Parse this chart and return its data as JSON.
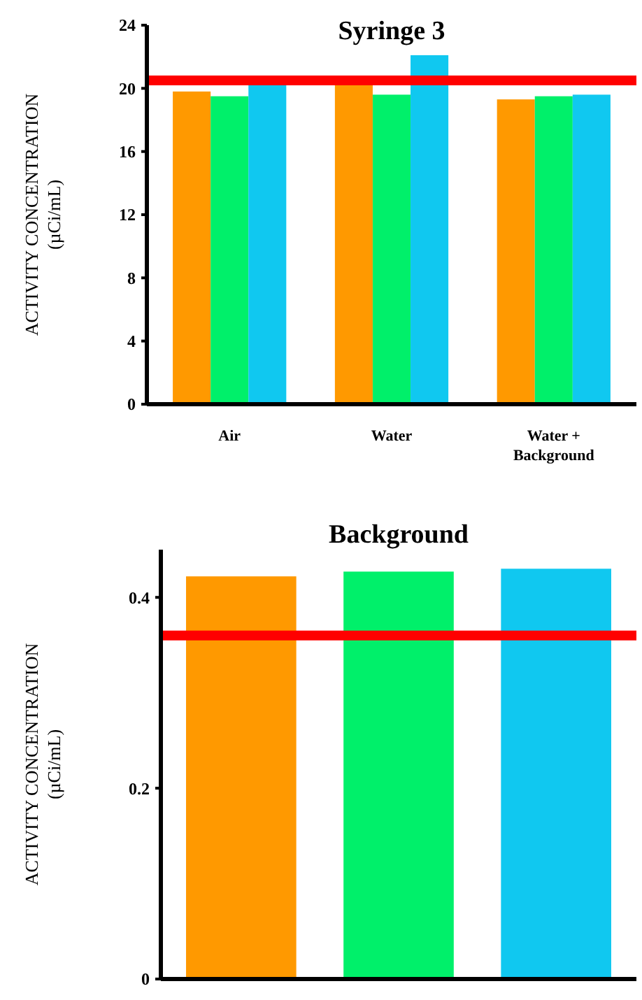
{
  "chart_data": [
    {
      "type": "bar",
      "title": "Syringe 3",
      "ylabel": "ACTIVITY CONCENTRATION (µCi/mL)",
      "categories": [
        "Air",
        "Water",
        "Water + Background"
      ],
      "series": [
        {
          "color": "#ff9900",
          "values": [
            19.8,
            20.3,
            19.3
          ]
        },
        {
          "color": "#00f06a",
          "values": [
            19.5,
            19.6,
            19.5
          ]
        },
        {
          "color": "#10c8f0",
          "values": [
            20.3,
            22.1,
            19.6
          ]
        }
      ],
      "ylim": [
        0,
        24
      ],
      "yticks": [
        0,
        4,
        8,
        12,
        16,
        20,
        24
      ],
      "grid": false,
      "ref_lines": [
        {
          "axis": "y",
          "value": 20.5,
          "color": "#ff0000"
        }
      ]
    },
    {
      "type": "bar",
      "title": "Background",
      "ylabel": "ACTIVITY CONCENTRATION (µCi/mL)",
      "categories": [
        null,
        null,
        null
      ],
      "values": [
        0.422,
        0.427,
        0.43
      ],
      "colors": [
        "#ff9900",
        "#00f06a",
        "#10c8f0"
      ],
      "ylim": [
        0,
        0.45
      ],
      "yticks": [
        0,
        0.2,
        0.4
      ],
      "grid": false,
      "ref_lines": [
        {
          "axis": "y",
          "value": 0.36,
          "color": "#ff0000"
        }
      ]
    }
  ]
}
